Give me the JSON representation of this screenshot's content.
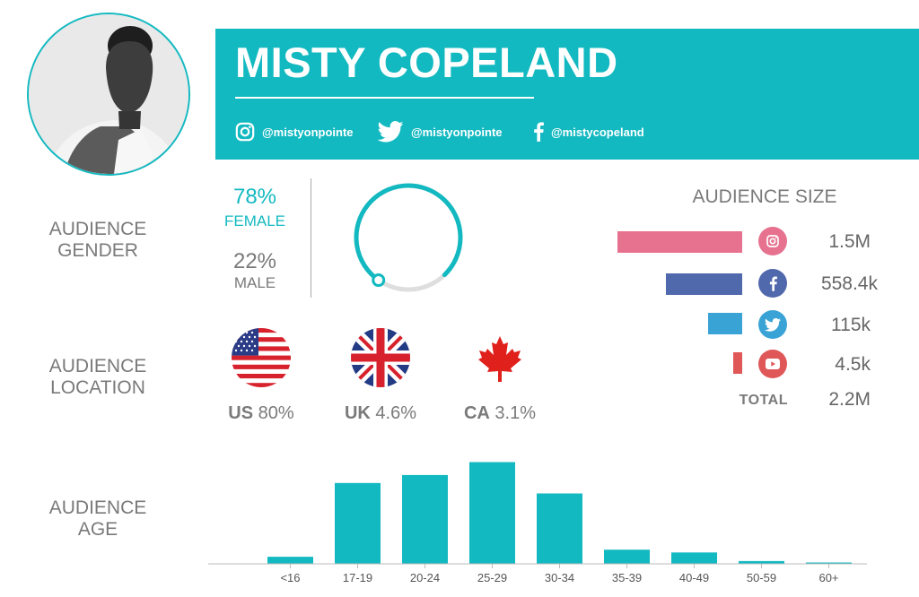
{
  "profile": {
    "name": "MISTY COPELAND",
    "instagram": "@mistyonpointe",
    "twitter": "@mistyonpointe",
    "facebook": "@mistycopeland"
  },
  "colors": {
    "accent": "#13b9c1",
    "instagram": "#e6728f",
    "facebook": "#5068ac",
    "twitter": "#3aa3d5",
    "youtube": "#e05757",
    "text_gray": "#7a7a7a"
  },
  "labels": {
    "gender_1": "AUDIENCE",
    "gender_2": "GENDER",
    "location_1": "AUDIENCE",
    "location_2": "LOCATION",
    "age_1": "AUDIENCE",
    "age_2": "AGE"
  },
  "gender": {
    "female_pct": "78%",
    "female_label": "FEMALE",
    "male_pct": "22%",
    "male_label": "MALE",
    "female_fraction": 0.78
  },
  "audience_size": {
    "title": "AUDIENCE SIZE",
    "items": [
      {
        "platform": "Instagram",
        "icon": "instagram-icon",
        "value": "1.5M",
        "count": 1500000
      },
      {
        "platform": "Facebook",
        "icon": "facebook-icon",
        "value": "558.4k",
        "count": 558400
      },
      {
        "platform": "Twitter",
        "icon": "twitter-icon",
        "value": "115k",
        "count": 115000
      },
      {
        "platform": "YouTube",
        "icon": "youtube-icon",
        "value": "4.5k",
        "count": 4500
      }
    ],
    "total_label": "TOTAL",
    "total_value": "2.2M"
  },
  "location": [
    {
      "code": "US",
      "pct": "80%",
      "flag": "us-flag-icon"
    },
    {
      "code": "UK",
      "pct": "4.6%",
      "flag": "uk-flag-icon"
    },
    {
      "code": "CA",
      "pct": "3.1%",
      "flag": "canada-flag-icon"
    }
  ],
  "chart_data": {
    "type": "bar",
    "categories": [
      "<16",
      "17-19",
      "20-24",
      "25-29",
      "30-34",
      "35-39",
      "40-49",
      "50-59",
      "60+"
    ],
    "values": [
      2.3,
      26.3,
      28.9,
      33.1,
      22.9,
      4.6,
      3.7,
      0.9,
      0.3
    ],
    "title": "",
    "xlabel": "",
    "ylabel": "",
    "ylim": [
      0,
      35
    ],
    "grid": false
  }
}
